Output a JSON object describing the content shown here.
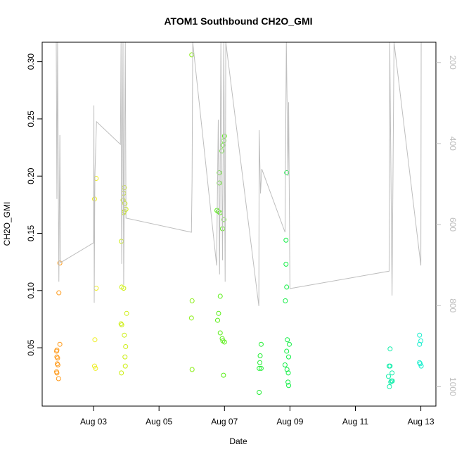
{
  "chart_data": {
    "type": "scatter",
    "title": "ATOM1 Southbound CH2O_GMI",
    "x_label": "Date",
    "y_label": "CH2O_GMI",
    "xlim": [
      1.43,
      13.46
    ],
    "ylim": [
      -0.001,
      0.317
    ],
    "y2lim": [
      1048,
      150
    ],
    "xticks": [
      {
        "value": 3,
        "label": "Aug 03"
      },
      {
        "value": 5,
        "label": "Aug 05"
      },
      {
        "value": 7,
        "label": "Aug 07"
      },
      {
        "value": 9,
        "label": "Aug 09"
      },
      {
        "value": 11,
        "label": "Aug 11"
      },
      {
        "value": 13,
        "label": "Aug 13"
      }
    ],
    "yticks": [
      0.05,
      {
        "value": 0.1,
        "label": "0.10"
      },
      0.15,
      {
        "value": 0.2,
        "label": "0.20"
      },
      0.25,
      {
        "value": 0.3,
        "label": "0.30"
      }
    ],
    "y2ticks": [
      200,
      400,
      600,
      800,
      1000
    ],
    "series": [
      {
        "color": "#ff9a1a",
        "x": [
          1.97,
          1.94,
          1.97,
          1.88,
          1.87,
          1.88,
          1.9,
          1.89,
          1.91,
          1.87,
          1.88,
          1.93
        ],
        "values": [
          0.124,
          0.098,
          0.053,
          0.048,
          0.047,
          0.042,
          0.041,
          0.036,
          0.035,
          0.029,
          0.028,
          0.023
        ]
      },
      {
        "color": "#eeee22",
        "x": [
          3.08,
          3.03,
          3.08,
          3.04,
          3.03,
          3.06
        ],
        "values": [
          0.198,
          0.18,
          0.102,
          0.057,
          0.034,
          0.032
        ]
      },
      {
        "color": "#ccee11",
        "x": [
          3.94,
          3.92,
          3.9,
          3.96,
          3.99,
          3.94,
          3.92,
          3.85,
          3.86,
          3.92,
          4.01,
          3.84,
          3.86,
          3.94,
          3.98,
          3.96,
          3.97,
          3.85
        ],
        "values": [
          0.19,
          0.185,
          0.179,
          0.176,
          0.171,
          0.169,
          0.168,
          0.143,
          0.103,
          0.102,
          0.08,
          0.071,
          0.07,
          0.061,
          0.051,
          0.042,
          0.034,
          0.028
        ]
      },
      {
        "color": "#88ee11",
        "x": [
          6.0,
          6.01,
          5.99,
          6.01
        ],
        "values": [
          0.306,
          0.091,
          0.076,
          0.031
        ]
      },
      {
        "color": "#55ee11",
        "x": [
          7.0,
          6.98,
          6.95,
          6.92,
          6.84,
          6.84,
          6.77,
          6.81,
          6.86,
          6.98,
          6.94,
          6.87,
          6.82,
          6.79,
          6.87,
          6.93,
          6.95,
          7.0,
          6.97
        ],
        "values": [
          0.235,
          0.231,
          0.227,
          0.222,
          0.203,
          0.194,
          0.17,
          0.169,
          0.168,
          0.162,
          0.154,
          0.095,
          0.08,
          0.074,
          0.063,
          0.058,
          0.056,
          0.055,
          0.026
        ]
      },
      {
        "color": "#22ee33",
        "x": [
          8.12,
          8.09,
          8.08,
          8.06,
          8.12,
          8.06
        ],
        "values": [
          0.053,
          0.043,
          0.037,
          0.032,
          0.032,
          0.011
        ]
      },
      {
        "color": "#11ee44",
        "x": [
          8.9,
          8.88,
          8.88,
          8.9,
          8.86,
          8.92,
          8.98,
          8.9,
          8.96,
          8.85,
          8.91,
          8.95,
          8.94,
          8.96
        ],
        "values": [
          0.203,
          0.144,
          0.123,
          0.103,
          0.091,
          0.057,
          0.053,
          0.047,
          0.042,
          0.035,
          0.031,
          0.028,
          0.02,
          0.017
        ]
      },
      {
        "color": "#11eeaa",
        "x": [
          12.06,
          12.03,
          12.06,
          12.12,
          12.01,
          12.1,
          12.13,
          12.08,
          12.04
        ],
        "values": [
          0.049,
          0.034,
          0.034,
          0.028,
          0.025,
          0.021,
          0.021,
          0.02,
          0.016
        ]
      },
      {
        "color": "#11eecc",
        "x": [
          12.96,
          13.0,
          12.96,
          12.96,
          12.98,
          13.01
        ],
        "values": [
          0.061,
          0.056,
          0.053,
          0.037,
          0.036,
          0.034
        ]
      },
      {
        "color": "#bebebe",
        "axis": "y2",
        "line": true,
        "x": [
          1.86,
          1.88,
          1.9,
          1.94,
          1.97,
          1.99,
          3.0,
          3.01,
          3.02,
          3.04,
          3.09,
          3.82,
          3.84,
          3.86,
          3.9,
          3.92,
          3.97,
          3.99,
          5.99,
          6.01,
          6.03,
          6.76,
          6.81,
          6.85,
          6.89,
          6.94,
          6.98,
          7.02,
          7.04,
          8.05,
          8.06,
          8.1,
          8.14,
          8.85,
          8.89,
          8.94,
          8.96,
          9.0,
          12.03,
          12.05,
          12.12,
          12.18,
          13.0,
          13.01
        ],
        "values": [
          150,
          537,
          150,
          741,
          379,
          694,
          645,
          306,
          793,
          480,
          346,
          402,
          150,
          697,
          150,
          749,
          150,
          584,
          619,
          489,
          150,
          701,
          341,
          723,
          150,
          688,
          150,
          741,
          150,
          801,
          367,
          523,
          463,
          619,
          150,
          480,
          298,
          758,
          715,
          150,
          775,
          150,
          701,
          150
        ]
      }
    ]
  }
}
